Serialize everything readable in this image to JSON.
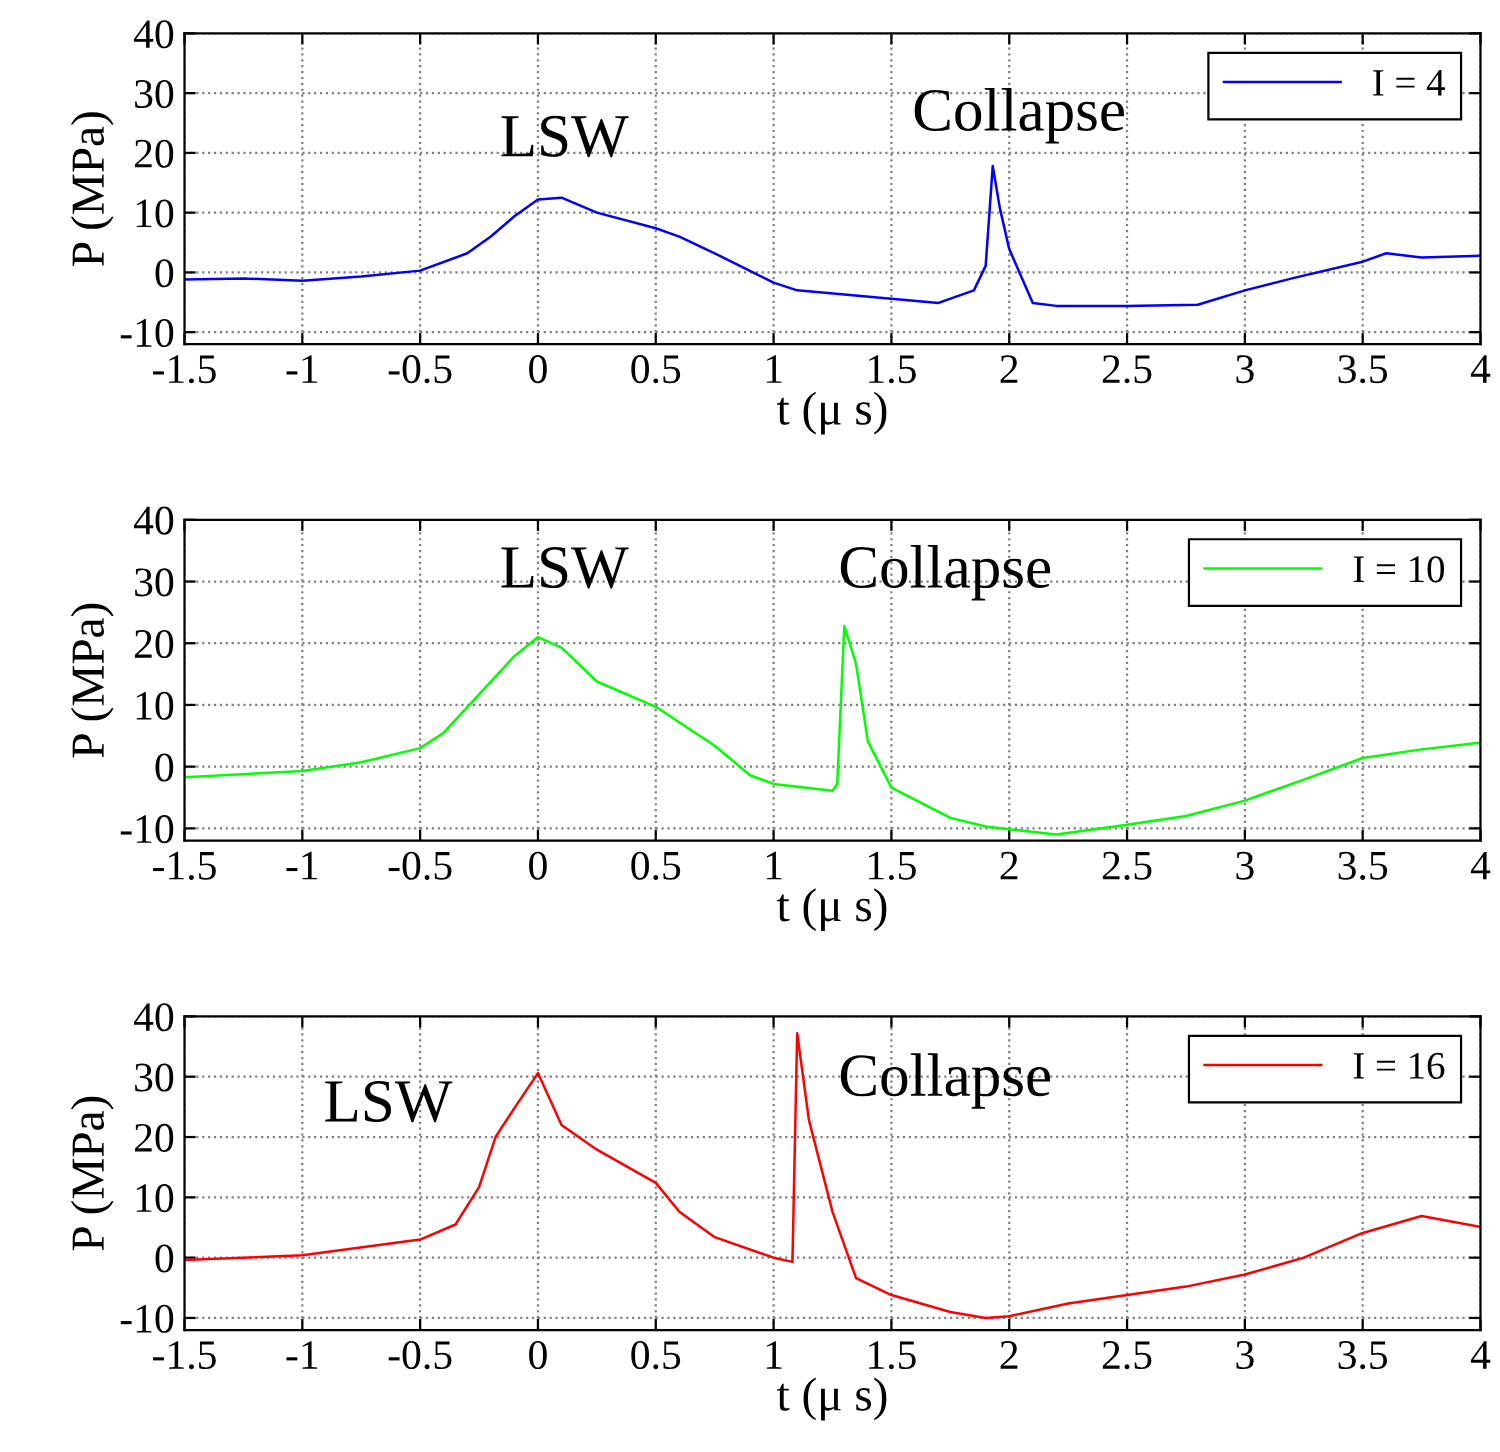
{
  "chart_data": [
    {
      "type": "line",
      "xlabel": "t (μ s)",
      "ylabel": "P (MPa)",
      "xlim": [
        -1.5,
        4
      ],
      "ylim": [
        -12,
        40
      ],
      "xticks": [
        -1.5,
        -1,
        -0.5,
        0,
        0.5,
        1,
        1.5,
        2,
        2.5,
        3,
        3.5,
        4
      ],
      "yticks": [
        -10,
        0,
        10,
        20,
        30,
        40
      ],
      "grid": true,
      "legend": "top right",
      "line_style": "solid",
      "marker": "none",
      "annotations": [
        "LSW",
        "Collapse"
      ],
      "series": [
        {
          "name": "I = 4",
          "color": "#0000ff",
          "x": [
            -1.5,
            -1.25,
            -1,
            -0.75,
            -0.5,
            -0.3,
            -0.2,
            -0.1,
            0,
            0.1,
            0.25,
            0.5,
            0.6,
            0.75,
            1,
            1.1,
            1.3,
            1.5,
            1.7,
            1.85,
            1.9,
            1.93,
            1.96,
            2.0,
            2.1,
            2.2,
            2.5,
            2.8,
            3.0,
            3.2,
            3.5,
            3.6,
            3.75,
            4
          ],
          "values": [
            -1.2,
            -1,
            -1.4,
            -0.7,
            0.3,
            3.2,
            6,
            9.4,
            12.2,
            12.5,
            10,
            7.4,
            6,
            3.2,
            -1.7,
            -3,
            -3.7,
            -4.4,
            -5.1,
            -3,
            1.1,
            17.8,
            10.8,
            3.9,
            -5.1,
            -5.6,
            -5.6,
            -5.4,
            -3,
            -1,
            1.8,
            3.2,
            2.5,
            2.8
          ]
        }
      ]
    },
    {
      "type": "line",
      "xlabel": "t (μ s)",
      "ylabel": "P (MPa)",
      "xlim": [
        -1.5,
        4
      ],
      "ylim": [
        -12,
        40
      ],
      "xticks": [
        -1.5,
        -1,
        -0.5,
        0,
        0.5,
        1,
        1.5,
        2,
        2.5,
        3,
        3.5,
        4
      ],
      "yticks": [
        -10,
        0,
        10,
        20,
        30,
        40
      ],
      "grid": true,
      "legend": "top right",
      "line_style": "solid",
      "marker": "none",
      "annotations": [
        "LSW",
        "Collapse"
      ],
      "series": [
        {
          "name": "I = 10",
          "color": "#00ff00",
          "x": [
            -1.5,
            -1,
            -0.75,
            -0.5,
            -0.4,
            -0.25,
            -0.1,
            0,
            0.1,
            0.25,
            0.5,
            0.75,
            0.9,
            1,
            1.25,
            1.27,
            1.3,
            1.35,
            1.4,
            1.5,
            1.75,
            1.9,
            2.2,
            2.5,
            2.75,
            3,
            3.25,
            3.5,
            3.75,
            4
          ],
          "values": [
            -1.7,
            -0.7,
            0.7,
            3,
            5.5,
            11.7,
            17.9,
            21,
            19.3,
            13.8,
            9.7,
            3.4,
            -1.4,
            -2.8,
            -3.9,
            -2.8,
            22.8,
            16.6,
            4.1,
            -3.4,
            -8.3,
            -9.7,
            -11,
            -9.4,
            -8,
            -5.5,
            -2.1,
            1.4,
            2.8,
            3.9
          ]
        }
      ]
    },
    {
      "type": "line",
      "xlabel": "t (μ s)",
      "ylabel": "P (MPa)",
      "xlim": [
        -1.5,
        4
      ],
      "ylim": [
        -12,
        40
      ],
      "xticks": [
        -1.5,
        -1,
        -0.5,
        0,
        0.5,
        1,
        1.5,
        2,
        2.5,
        3,
        3.5,
        4
      ],
      "yticks": [
        -10,
        0,
        10,
        20,
        30,
        40
      ],
      "grid": true,
      "legend": "top right",
      "line_style": "solid",
      "marker": "none",
      "annotations": [
        "LSW",
        "Collapse"
      ],
      "series": [
        {
          "name": "I = 16",
          "color": "#ff0000",
          "x": [
            -1.5,
            -1,
            -0.5,
            -0.35,
            -0.25,
            -0.18,
            -0.1,
            0,
            0.1,
            0.25,
            0.5,
            0.6,
            0.75,
            1,
            1.08,
            1.1,
            1.15,
            1.25,
            1.35,
            1.5,
            1.75,
            1.9,
            2,
            2.25,
            2.5,
            2.75,
            3,
            3.25,
            3.5,
            3.75,
            4
          ],
          "values": [
            -0.4,
            0.4,
            3,
            5.5,
            11.7,
            20,
            24.8,
            30.6,
            22,
            17.9,
            12.4,
            7.6,
            3.4,
            0,
            -0.7,
            37.2,
            22.8,
            7.6,
            -3.4,
            -6.2,
            -9,
            -10,
            -9.7,
            -7.6,
            -6.2,
            -4.8,
            -2.8,
            0,
            4.1,
            6.9,
            5.1
          ]
        }
      ]
    }
  ]
}
